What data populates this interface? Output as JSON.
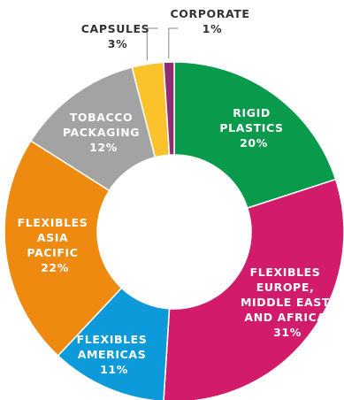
{
  "chart_data": {
    "type": "pie",
    "donut": true,
    "slices": [
      {
        "key": "rigid",
        "lines": [
          "RIGID",
          "PLASTICS"
        ],
        "value_label": "20%",
        "value": 20,
        "color": "#0a9a4c",
        "text_color": "#ffffff"
      },
      {
        "key": "emea",
        "lines": [
          "FLEXIBLES",
          "EUROPE,",
          "MIDDLE EAST",
          "AND AFRICA"
        ],
        "value_label": "31%",
        "value": 31,
        "color": "#d21c6b",
        "text_color": "#ffffff"
      },
      {
        "key": "americas",
        "lines": [
          "FLEXIBLES",
          "AMERICAS"
        ],
        "value_label": "11%",
        "value": 11,
        "color": "#0c9adb",
        "text_color": "#ffffff"
      },
      {
        "key": "asia",
        "lines": [
          "FLEXIBLES",
          "ASIA",
          "PACIFIC"
        ],
        "value_label": "22%",
        "value": 22,
        "color": "#ee8a10",
        "text_color": "#ffffff"
      },
      {
        "key": "tobacco",
        "lines": [
          "TOBACCO",
          "PACKAGING"
        ],
        "value_label": "12%",
        "value": 12,
        "color": "#a3a3a3",
        "text_color": "#ffffff"
      },
      {
        "key": "capsules",
        "lines": [
          "CAPSULES"
        ],
        "value_label": "3%",
        "value": 3,
        "color": "#fcc22c",
        "text_color": "#333333"
      },
      {
        "key": "corporate",
        "lines": [
          "CORPORATE"
        ],
        "value_label": "1%",
        "value": 1,
        "color": "#8e2c74",
        "text_color": "#333333"
      }
    ]
  }
}
